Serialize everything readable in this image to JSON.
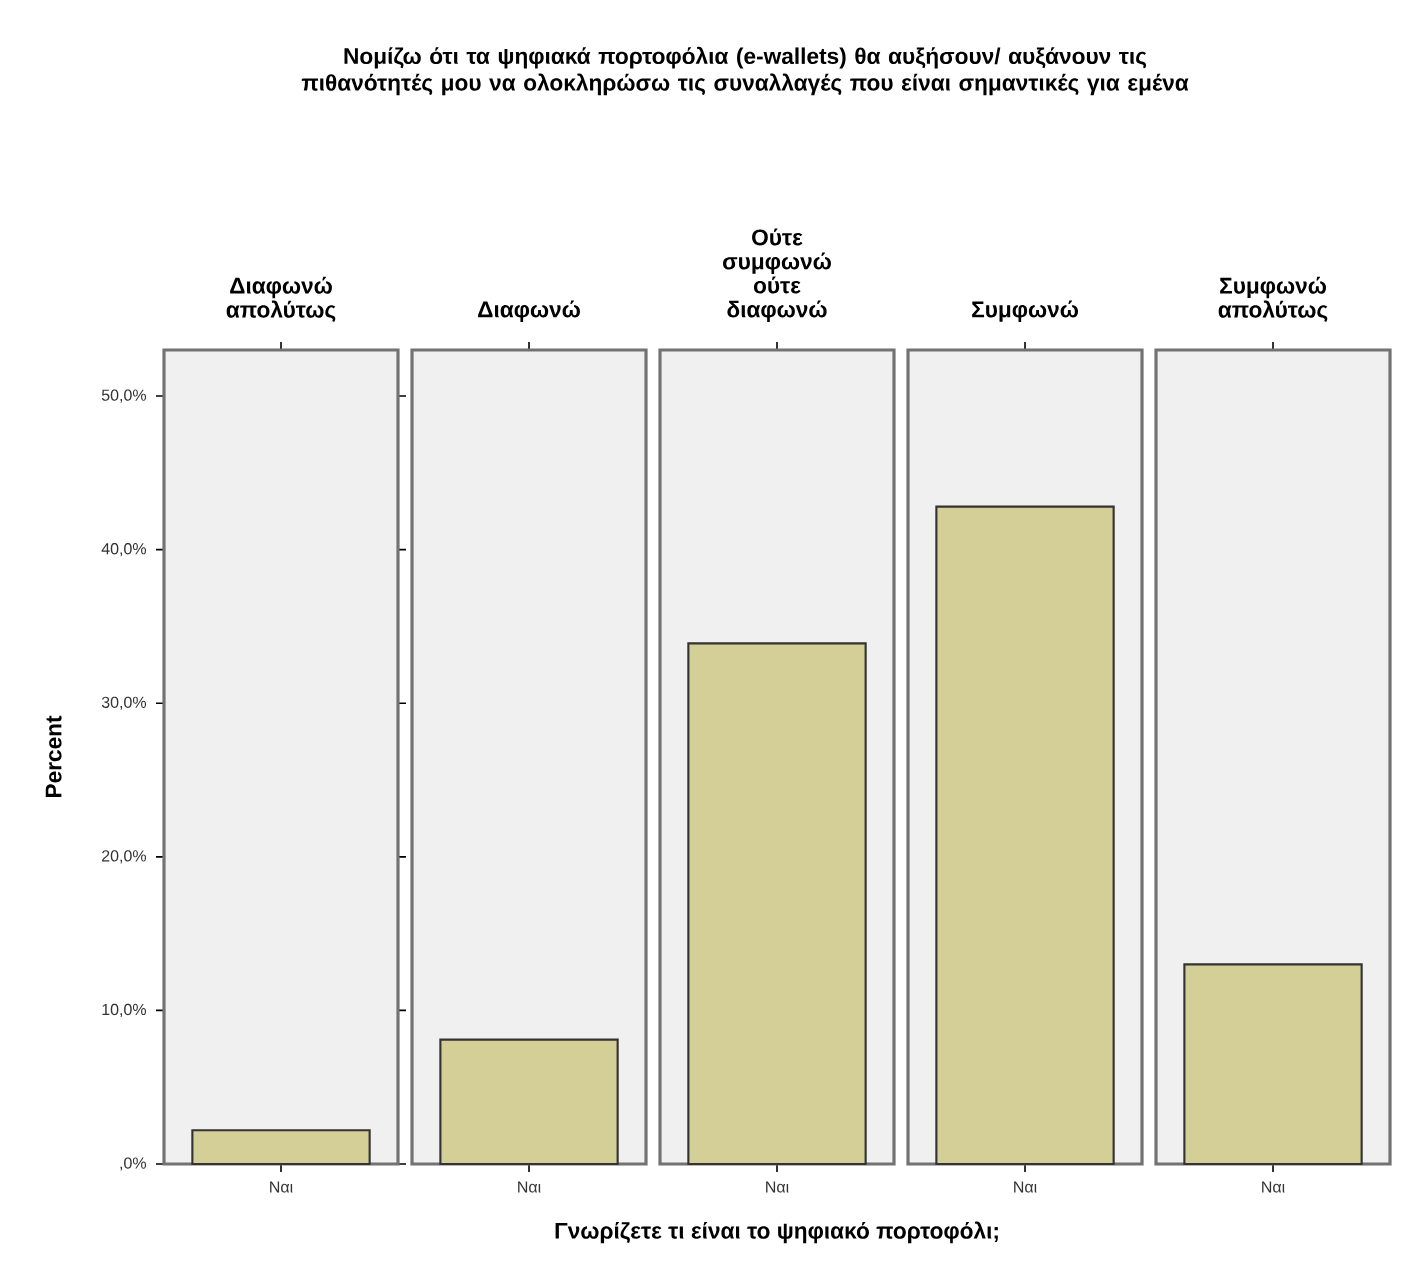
{
  "chart_data": [
    {
      "type": "bar",
      "title": "Διαφωνώ απολύτως",
      "ylabel": "Percent",
      "categories": [
        "Ναι"
      ],
      "values": [
        2.2
      ],
      "color": "#d3cf97",
      "ylim": [
        0,
        53
      ],
      "yticks": [
        {
          "value": 0,
          "label": ",0%"
        },
        {
          "value": 10,
          "label": "10,0%"
        },
        {
          "value": 20,
          "label": "20,0%"
        },
        {
          "value": 30,
          "label": "30,0%"
        },
        {
          "value": 40,
          "label": "40,0%"
        },
        {
          "value": 50,
          "label": "50,0%"
        }
      ]
    },
    {
      "type": "bar",
      "title": "Διαφωνώ",
      "categories": [
        "Ναι"
      ],
      "values": [
        8.1
      ],
      "color": "#d3cf97",
      "ylim": [
        0,
        53
      ],
      "tick_labels": "x"
    },
    {
      "type": "bar",
      "title": "Ούτε συμφωνώ ούτε διαφωνώ",
      "xlabel": "Γνωρίζετε τι είναι το ψηφιακό πορτοφόλι;",
      "annotations": [
        "Νομίζω ότι τα ψηφιακά πορτοφόλια (e-wallets) θα αυξήσουν/ αυξάνουν τις πιθανότητές μου να ολοκληρώσω τις συναλλαγές που είναι σημαντικές για εμένα"
      ],
      "categories": [
        "Ναι"
      ],
      "values": [
        33.9
      ],
      "color": "#d3cf97",
      "ylim": [
        0,
        53
      ],
      "tick_labels": "x"
    },
    {
      "type": "bar",
      "title": "Συμφωνώ",
      "categories": [
        "Ναι"
      ],
      "values": [
        42.8
      ],
      "color": "#d3cf97",
      "ylim": [
        0,
        53
      ],
      "tick_labels": "x"
    },
    {
      "type": "bar",
      "title": "Συμφωνώ απολύτως",
      "categories": [
        "Ναι"
      ],
      "values": [
        13.0
      ],
      "color": "#d3cf97",
      "ylim": [
        0,
        53
      ],
      "tick_labels": "x"
    }
  ]
}
